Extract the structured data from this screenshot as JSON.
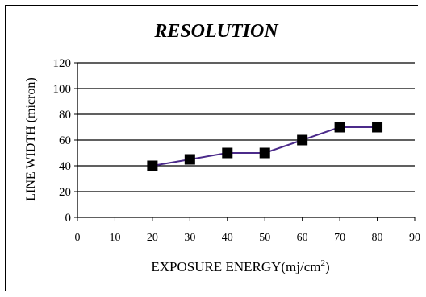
{
  "chart_data": {
    "type": "line",
    "title": "RESOLUTION",
    "xlabel": "EXPOSURE ENERGY(mj/cm",
    "xlabel_sup": "2",
    "xlabel_suffix": ")",
    "ylabel": "LINE WIDTH (micron)",
    "x": [
      20,
      30,
      40,
      50,
      60,
      70,
      80
    ],
    "series": [
      {
        "values": [
          40,
          45,
          50,
          50,
          60,
          70,
          70
        ]
      }
    ],
    "xlim": [
      0,
      90
    ],
    "ylim": [
      0,
      120
    ],
    "x_ticks": [
      "0",
      "10",
      "20",
      "30",
      "40",
      "50",
      "60",
      "70",
      "80",
      "90"
    ],
    "y_ticks": [
      "0",
      "20",
      "40",
      "60",
      "80",
      "100",
      "120"
    ],
    "grid": "horizontal",
    "line_color": "#4b2a8a",
    "marker_color": "#000000",
    "marker": "square"
  }
}
